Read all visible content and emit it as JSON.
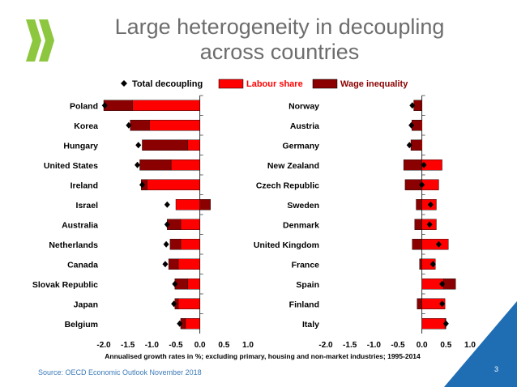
{
  "slide": {
    "title_line1": "Large heterogeneity in decoupling",
    "title_line2": "across countries",
    "source": "Source: OECD Economic Outlook November 2018",
    "page_number": "3",
    "colors": {
      "accent": "#3a7ab8",
      "logo_green": "#8dc63f",
      "corner_blue": "#1f6eb4"
    }
  },
  "chart_data": [
    {
      "type": "bar",
      "stacked": true,
      "orientation": "horizontal",
      "categories": [
        "Poland",
        "Korea",
        "Hungary",
        "United States",
        "Ireland",
        "Israel",
        "Australia",
        "Netherlands",
        "Canada",
        "Slovak Republic",
        "Japan",
        "Belgium"
      ],
      "series": [
        {
          "name": "Labour share",
          "color": "#ff0000",
          "values": [
            -1.4,
            -1.05,
            -0.25,
            -0.6,
            -1.1,
            -0.5,
            -0.4,
            -0.4,
            -0.45,
            -0.25,
            -0.45,
            -0.3
          ]
        },
        {
          "name": "Wage inequality",
          "color": "#8b0000",
          "values": [
            -0.6,
            -0.4,
            -0.95,
            -0.65,
            -0.12,
            0.22,
            -0.28,
            -0.22,
            -0.2,
            -0.27,
            -0.07,
            -0.1
          ]
        },
        {
          "name": "Total decoupling",
          "type": "marker",
          "color": "#000000",
          "values": [
            -1.98,
            -1.48,
            -1.28,
            -1.3,
            -1.2,
            -0.68,
            -0.68,
            -0.7,
            -0.72,
            -0.52,
            -0.54,
            -0.42
          ]
        }
      ],
      "xticks": [
        "-2.0",
        "-1.5",
        "-1.0",
        "-0.5",
        "0.0",
        "0.5",
        "1.0"
      ],
      "xlim": [
        -2.0,
        1.0
      ]
    },
    {
      "type": "bar",
      "stacked": true,
      "orientation": "horizontal",
      "categories": [
        "Norway",
        "Austria",
        "Germany",
        "New Zealand",
        "Czech Republic",
        "Sweden",
        "Denmark",
        "United Kingdom",
        "France",
        "Spain",
        "Finland",
        "Italy"
      ],
      "series": [
        {
          "name": "Labour share",
          "color": "#ff0000",
          "values": [
            -0.02,
            -0.03,
            -0.03,
            0.42,
            0.35,
            0.3,
            0.3,
            0.55,
            0.28,
            0.45,
            0.48,
            0.48
          ]
        },
        {
          "name": "Wage inequality",
          "color": "#8b0000",
          "values": [
            -0.15,
            -0.18,
            -0.2,
            -0.38,
            -0.35,
            -0.12,
            -0.15,
            -0.2,
            -0.05,
            0.25,
            -0.1,
            0.02
          ]
        },
        {
          "name": "Total decoupling",
          "type": "marker",
          "color": "#000000",
          "values": [
            -0.2,
            -0.22,
            -0.26,
            0.04,
            0.0,
            0.18,
            0.16,
            0.35,
            0.23,
            0.42,
            0.42,
            0.5
          ]
        }
      ],
      "xticks": [
        "-2.0",
        "-1.5",
        "-1.0",
        "-0.5",
        "0.0",
        "0.5",
        "1.0"
      ],
      "xlim": [
        -2.0,
        1.0
      ]
    }
  ],
  "legend": {
    "items": [
      "Total decoupling",
      "Labour share",
      "Wage inequality"
    ]
  },
  "xlabel": "Annualised growth rates in %; excluding primary, housing and non-market industries; 1995-2014"
}
